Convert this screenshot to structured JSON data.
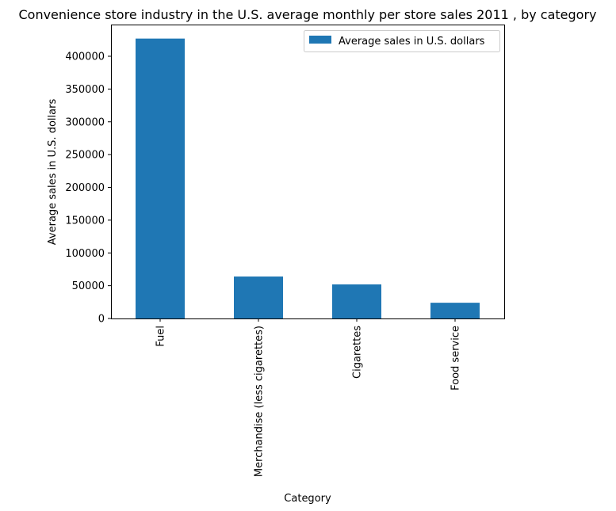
{
  "chart_data": {
    "type": "bar",
    "title": "Convenience store industry in the U.S. average monthly per store sales 2011 , by category",
    "xlabel": "Category",
    "ylabel": "Average sales in U.S. dollars",
    "categories": [
      "Fuel",
      "Merchandise (less cigarettes)",
      "Cigarettes",
      "Food service"
    ],
    "series": [
      {
        "name": "Average sales in U.S. dollars",
        "values": [
          427000,
          64000,
          52000,
          24000
        ],
        "color": "#1f77b4"
      }
    ],
    "ylim": [
      0,
      448350
    ],
    "yticks": [
      0,
      50000,
      100000,
      150000,
      200000,
      250000,
      300000,
      350000,
      400000
    ],
    "legend_position": "top-right",
    "grid": false
  }
}
